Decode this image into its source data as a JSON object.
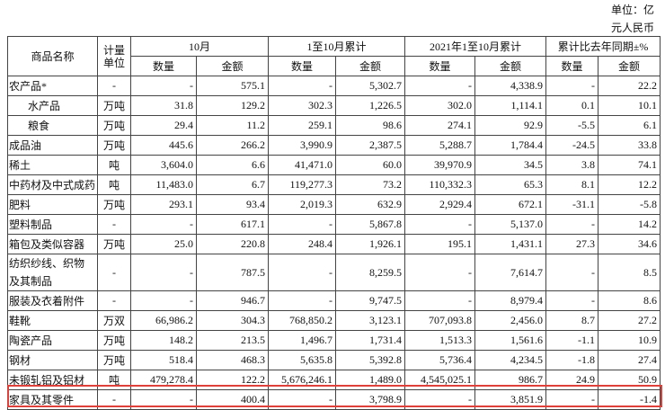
{
  "header": {
    "unit_line1": "单位：亿",
    "unit_line2": "元人民币"
  },
  "table": {
    "header_row1": [
      "商品名称",
      "计量单位",
      "10月",
      "1至10月累计",
      "2021年1至10月累计",
      "累计比去年同期±%"
    ],
    "header_row2": [
      "数量",
      "金额",
      "数量",
      "金额",
      "数量",
      "金额",
      "数量",
      "金额"
    ],
    "rows": [
      [
        "农产品*",
        "-",
        "-",
        "575.1",
        "-",
        "5,302.7",
        "-",
        "4,338.9",
        "-",
        "22.2"
      ],
      [
        "水产品",
        "万吨",
        "31.8",
        "129.2",
        "302.3",
        "1,226.5",
        "302.0",
        "1,114.1",
        "0.1",
        "10.1"
      ],
      [
        "粮食",
        "万吨",
        "29.4",
        "11.2",
        "259.1",
        "98.6",
        "274.1",
        "92.9",
        "-5.5",
        "6.1"
      ],
      [
        "成品油",
        "万吨",
        "445.6",
        "266.2",
        "3,990.9",
        "2,387.5",
        "5,288.7",
        "1,784.4",
        "-24.5",
        "33.8"
      ],
      [
        "稀土",
        "吨",
        "3,604.0",
        "6.6",
        "41,471.0",
        "60.0",
        "39,970.9",
        "34.5",
        "3.8",
        "74.1"
      ],
      [
        "中药材及中式成药",
        "吨",
        "11,483.0",
        "6.7",
        "119,277.3",
        "73.2",
        "110,332.3",
        "65.3",
        "8.1",
        "12.2"
      ],
      [
        "肥料",
        "万吨",
        "293.1",
        "93.4",
        "2,019.3",
        "632.9",
        "2,929.4",
        "672.1",
        "-31.1",
        "-5.8"
      ],
      [
        "塑料制品",
        "-",
        "-",
        "617.1",
        "-",
        "5,867.8",
        "-",
        "5,137.0",
        "-",
        "14.2"
      ],
      [
        "箱包及类似容器",
        "万吨",
        "25.0",
        "220.8",
        "248.4",
        "1,926.1",
        "195.1",
        "1,431.1",
        "27.3",
        "34.6"
      ],
      [
        "纺织纱线、织物及其制品",
        "-",
        "-",
        "787.5",
        "-",
        "8,259.5",
        "-",
        "7,614.7",
        "-",
        "8.5"
      ],
      [
        "服装及衣着附件",
        "-",
        "-",
        "946.7",
        "-",
        "9,747.5",
        "-",
        "8,979.4",
        "-",
        "8.6"
      ],
      [
        "鞋靴",
        "万双",
        "66,986.2",
        "304.3",
        "768,850.2",
        "3,123.1",
        "707,093.8",
        "2,456.0",
        "8.7",
        "27.2"
      ],
      [
        "陶瓷产品",
        "万吨",
        "148.2",
        "213.5",
        "1,496.7",
        "1,731.4",
        "1,513.3",
        "1,561.6",
        "-1.1",
        "10.9"
      ],
      [
        "钢材",
        "万吨",
        "518.4",
        "468.3",
        "5,635.8",
        "5,392.8",
        "5,736.4",
        "4,234.5",
        "-1.8",
        "27.4"
      ],
      [
        "未锻轧铝及铝材",
        "吨",
        "479,278.4",
        "122.2",
        "5,676,246.1",
        "1,489.0",
        "4,545,025.1",
        "986.7",
        "24.9",
        "50.9"
      ],
      [
        "家具及其零件",
        "-",
        "-",
        "400.4",
        "-",
        "3,798.9",
        "-",
        "3,851.9",
        "-",
        "-1.4"
      ]
    ]
  }
}
